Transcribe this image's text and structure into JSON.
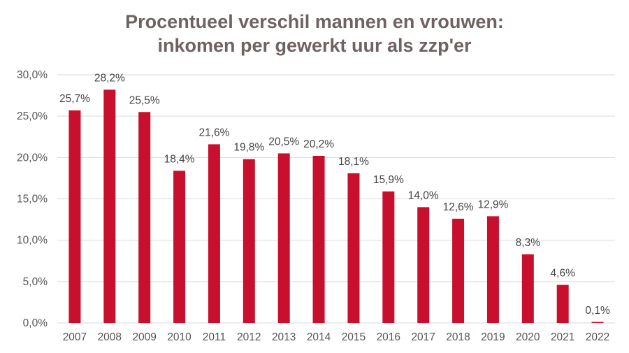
{
  "chart_data": {
    "type": "bar",
    "title": {
      "line1": "Procentueel verschil mannen en vrouwen:",
      "line2": "inkomen per gewerkt uur als zzp'er"
    },
    "categories": [
      "2007",
      "2008",
      "2009",
      "2010",
      "2011",
      "2012",
      "2013",
      "2014",
      "2015",
      "2016",
      "2017",
      "2018",
      "2019",
      "2020",
      "2021",
      "2022"
    ],
    "values": [
      25.7,
      28.2,
      25.5,
      18.4,
      21.6,
      19.8,
      20.5,
      20.2,
      18.1,
      15.9,
      14.0,
      12.6,
      12.9,
      8.3,
      4.6,
      0.1
    ],
    "data_labels": [
      "25,7%",
      "28,2%",
      "25,5%",
      "18,4%",
      "21,6%",
      "19,8%",
      "20,5%",
      "20,2%",
      "18,1%",
      "15,9%",
      "14,0%",
      "12,6%",
      "12,9%",
      "8,3%",
      "4,6%",
      "0,1%"
    ],
    "y_ticks": [
      0,
      5,
      10,
      15,
      20,
      25,
      30
    ],
    "y_tick_labels": [
      "0,0%",
      "5,0%",
      "10,0%",
      "15,0%",
      "20,0%",
      "25,0%",
      "30,0%"
    ],
    "ylim": [
      0,
      30
    ],
    "grid": true,
    "xlabel": "",
    "ylabel": "",
    "bar_color": "#c8102e",
    "grid_color": "#d9d9d9"
  }
}
